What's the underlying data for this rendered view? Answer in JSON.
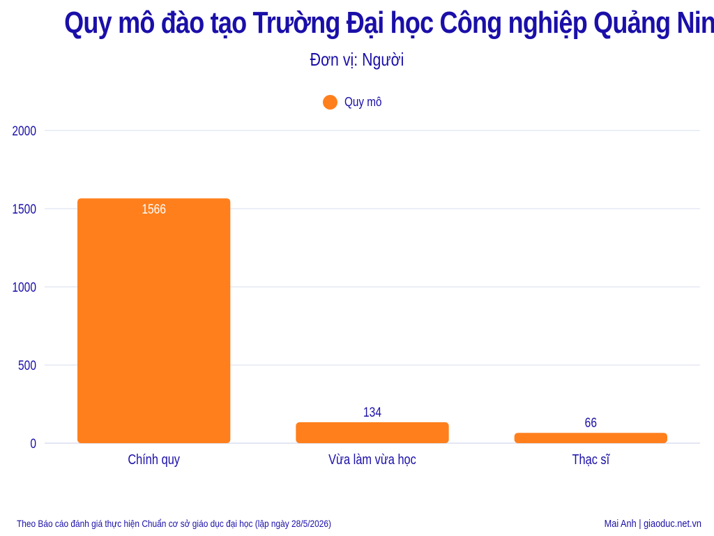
{
  "header": {
    "title": "Quy mô đào tạo Trường Đại học Công nghiệp Quảng Ninh",
    "subtitle": "Đơn vị: Người"
  },
  "legend": {
    "position": "top-center",
    "items": [
      {
        "label": "Quy mô",
        "color": "#ff7f1c"
      }
    ]
  },
  "footer": {
    "source": "Theo Báo cáo đánh giá thực hiện Chuẩn cơ sở giáo dục đại học (lập ngày 28/5/2026)",
    "credit": "Mai Anh | giaoduc.net.vn"
  },
  "colors": {
    "text": "#1a0fa8",
    "bar": "#ff7f1c",
    "grid": "#d8dcef"
  },
  "chart_data": {
    "type": "bar",
    "title": "Quy mô đào tạo Trường Đại học Công nghiệp Quảng Ninh",
    "subtitle": "Đơn vị: Người",
    "categories": [
      "Chính quy",
      "Vừa làm vừa học",
      "Thạc sĩ"
    ],
    "series": [
      {
        "name": "Quy mô",
        "values": [
          1566,
          134,
          66
        ]
      }
    ],
    "data_labels": [
      "1566",
      "134",
      "66"
    ],
    "y_ticks": [
      "0",
      "500",
      "1000",
      "1500",
      "2000"
    ],
    "ylim": [
      0,
      2000
    ],
    "grid": true,
    "legend_position": "top-center",
    "xlabel": "",
    "ylabel": ""
  }
}
